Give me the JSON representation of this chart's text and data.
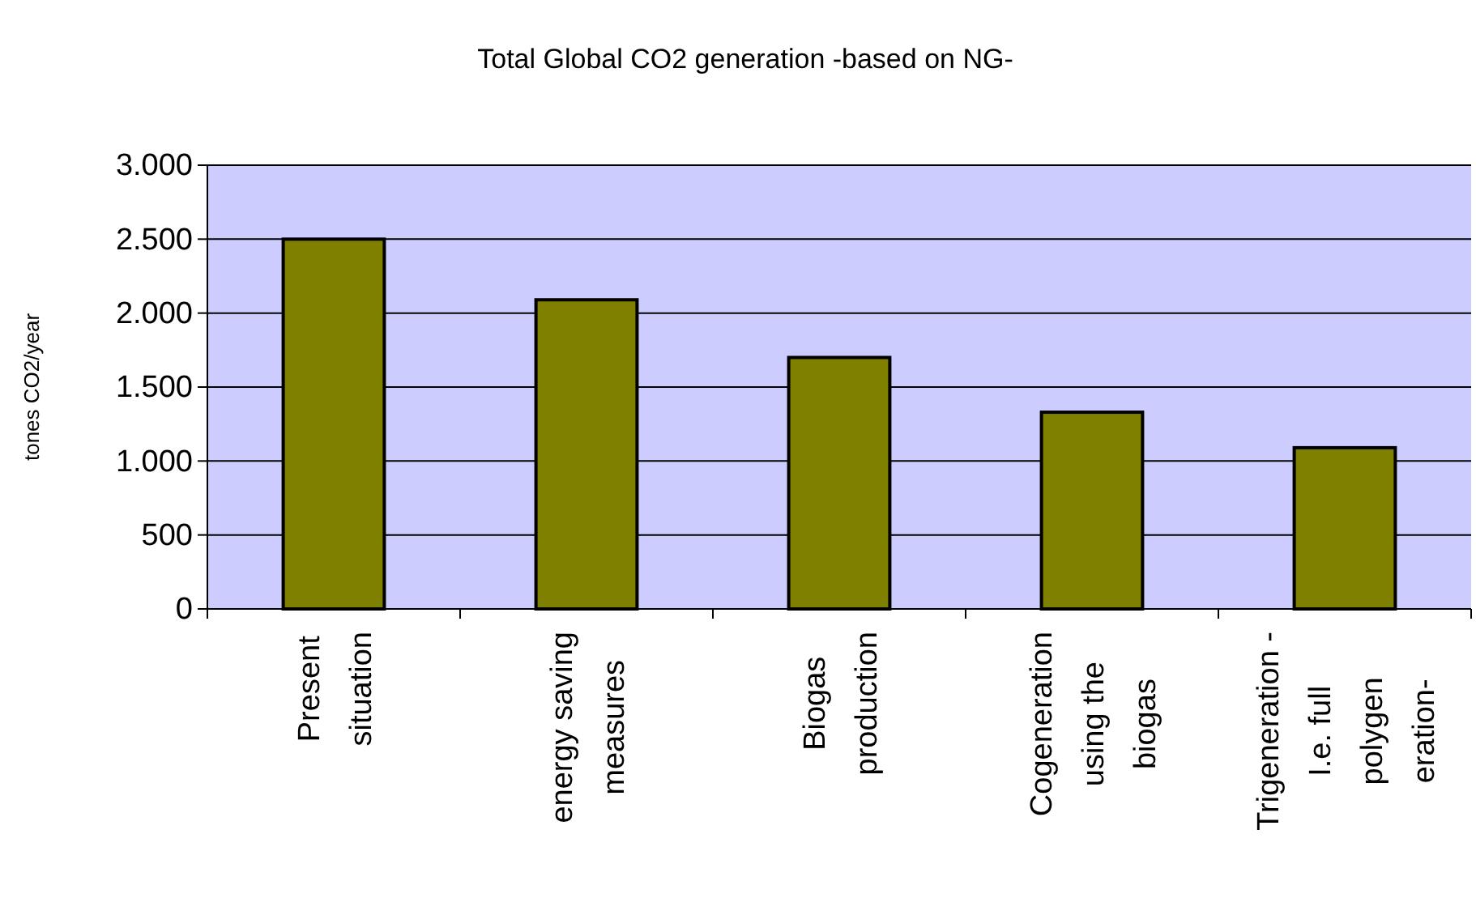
{
  "chart_data": {
    "type": "bar",
    "title": "Total Global CO2 generation -based on NG-",
    "ylabel": "tones CO2/year",
    "categories": [
      "Present\nsituation",
      "energy saving\nmeasures",
      "Biogas\nproduction",
      "Cogeneration\nusing the\nbiogas",
      "Trigeneration -\nI.e. full\npolygen\neration-"
    ],
    "values": [
      2500,
      2090,
      1700,
      1330,
      1090
    ],
    "color": "#808000",
    "ylim": [
      0,
      3000
    ],
    "yticks": [
      {
        "value": 0,
        "label": "0"
      },
      {
        "value": 500,
        "label": "500"
      },
      {
        "value": 1000,
        "label": "1.000"
      },
      {
        "value": 1500,
        "label": "1.500"
      },
      {
        "value": 2000,
        "label": "2.000"
      },
      {
        "value": 2500,
        "label": "2.500"
      },
      {
        "value": 3000,
        "label": "3.000"
      }
    ],
    "grid": "y"
  }
}
